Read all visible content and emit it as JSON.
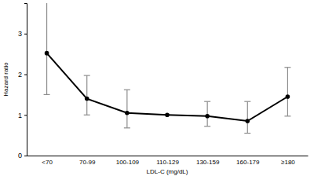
{
  "chart_data": {
    "type": "line",
    "categories": [
      "<70",
      "70-99",
      "100-109",
      "110-129",
      "130-159",
      "160-179",
      "≥180"
    ],
    "values": [
      2.52,
      1.4,
      1.05,
      1.0,
      0.97,
      0.85,
      1.45
    ],
    "lower": [
      1.5,
      1.0,
      0.68,
      null,
      0.72,
      0.55,
      0.97
    ],
    "upper": [
      4.0,
      1.97,
      1.62,
      null,
      1.33,
      1.33,
      2.17
    ],
    "color": "#000000",
    "marker": "circle",
    "x_label": "LDL-C (mg/dL)",
    "y_label": "Hazard ratio",
    "ylim": [
      0,
      3.75
    ],
    "yticks": [
      0,
      1,
      2,
      3
    ],
    "grid": false
  }
}
